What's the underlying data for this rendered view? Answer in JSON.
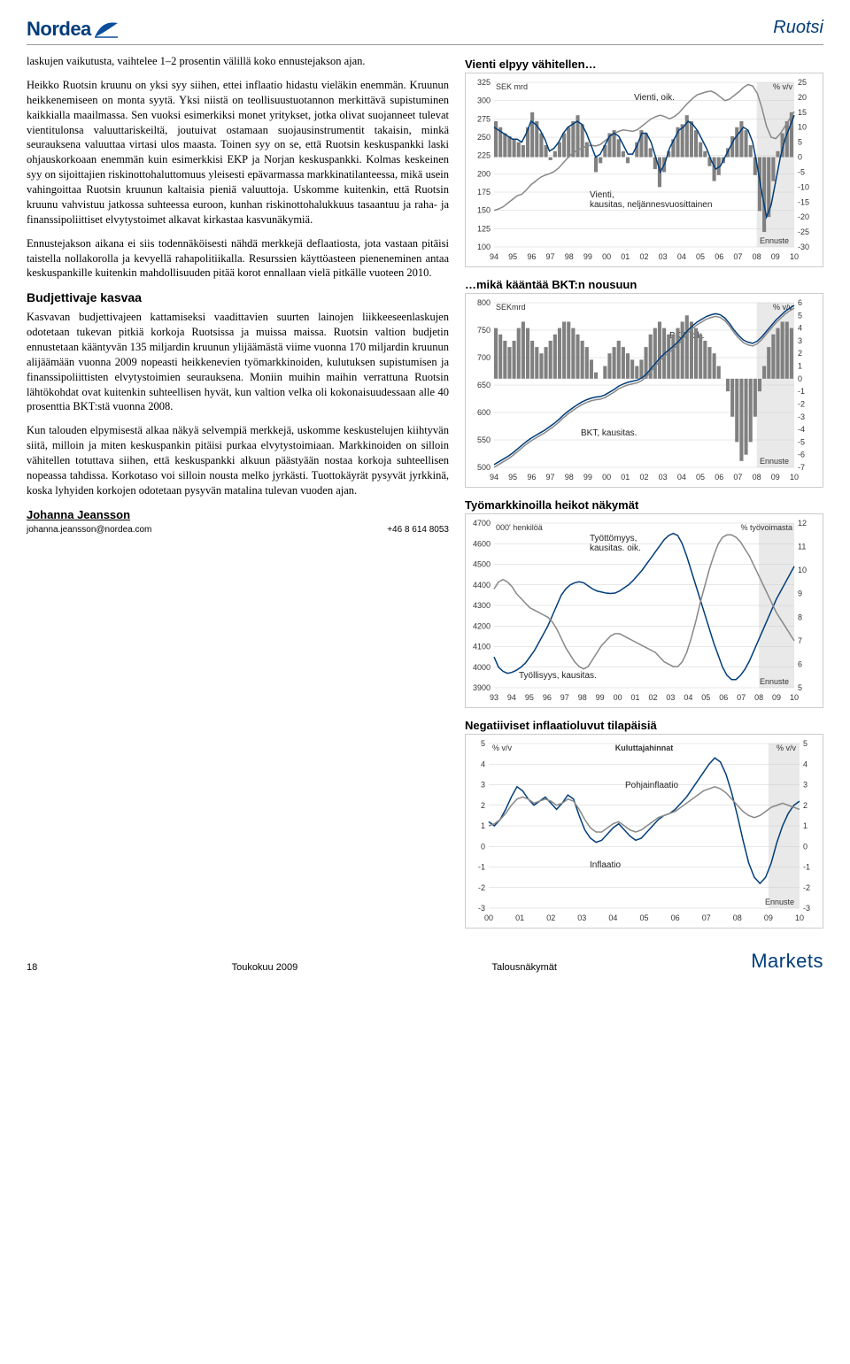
{
  "header": {
    "logo_text": "Nordea",
    "country": "Ruotsi"
  },
  "left": {
    "p1": "laskujen vaikutusta, vaihtelee 1–2 prosentin välillä koko ennustejakson ajan.",
    "p2": "Heikko Ruotsin kruunu on yksi syy siihen, ettei inflaatio hidastu vieläkin enemmän. Kruunun heikkenemiseen on monta syytä. Yksi niistä on teollisuustuotannon merkittävä supistuminen kaikkialla maailmassa. Sen vuoksi esimerkiksi monet yritykset, jotka olivat suojanneet tulevat vientitulonsa valuuttariskeiltä, joutuivat ostamaan suojausinstrumentit takaisin, minkä seurauksena valuuttaa virtasi ulos maasta. Toinen syy on se, että Ruotsin keskuspankki laski ohjauskorkoaan enemmän kuin esimerkkisi EKP ja Norjan keskuspankki. Kolmas keskeinen syy on sijoittajien riskinottohaluttomuus yleisesti epävarmassa markkinatilanteessa, mikä usein vahingoittaa Ruotsin kruunun kaltaisia pieniä valuuttoja. Uskomme kuitenkin, että Ruotsin kruunu vahvistuu jatkossa suhteessa euroon, kunhan riskinottohalukkuus tasaantuu ja raha- ja finanssipoliittiset elvytystoimet alkavat kirkastaa kasvunäkymiä.",
    "p3": "Ennustejakson aikana ei siis todennäköisesti nähdä merkkejä deflaatiosta, jota vastaan pitäisi taistella nollakorolla ja kevyellä rahapolitiikalla. Resurssien käyttöasteen pieneneminen antaa keskuspankille kuitenkin mahdollisuuden pitää korot ennallaan vielä pitkälle vuoteen 2010.",
    "subhead": "Budjettivaje kasvaa",
    "p4": "Kasvavan budjettivajeen kattamiseksi vaadittavien suurten lainojen liikkeeseenlaskujen odotetaan tukevan pitkiä korkoja Ruotsissa ja muissa maissa. Ruotsin valtion budjetin ennustetaan kääntyvän 135 miljardin kruunun ylijäämästä viime vuonna 170 miljardin kruunun alijäämään vuonna 2009 nopeasti heikkenevien työmarkkinoiden, kulutuksen supistumisen ja finanssipoliittisten elvytystoimien seurauksena. Moniin muihin maihin verrattuna Ruotsin lähtökohdat ovat kuitenkin suhteellisen hyvät, kun valtion velka oli kokonaisuudessaan alle 40 prosenttia BKT:stä vuonna 2008.",
    "p5": "Kun talouden elpymisestä alkaa näkyä selvempiä merkkejä, uskomme keskustelujen kiihtyvän siitä, milloin ja miten keskuspankin pitäisi purkaa elvytystoimiaan. Markkinoiden on silloin vähitellen totuttava siihen, että keskuspankki alkuun päästyään nostaa korkoja suhteellisen nopeassa tahdissa. Korkotaso voi silloin nousta melko jyrkästi. Tuottokäyrät pysyvät jyrkkinä, koska lyhyiden korkojen odotetaan pysyvän matalina tulevan vuoden ajan.",
    "author": "Johanna Jeansson",
    "email": "johanna.jeansson@nordea.com",
    "phone": "+46 8 614 8053"
  },
  "charts": {
    "years_long": [
      "94",
      "95",
      "96",
      "97",
      "98",
      "99",
      "00",
      "01",
      "02",
      "03",
      "04",
      "05",
      "06",
      "07",
      "08",
      "09",
      "10"
    ],
    "years_labor": [
      "93",
      "94",
      "95",
      "96",
      "97",
      "98",
      "99",
      "00",
      "01",
      "02",
      "03",
      "04",
      "05",
      "06",
      "07",
      "08",
      "09",
      "10"
    ],
    "years_cpi": [
      "00",
      "01",
      "02",
      "03",
      "04",
      "05",
      "06",
      "07",
      "08",
      "09",
      "10"
    ],
    "forecast_label": "Ennuste",
    "c1": {
      "title": "Vienti elpyy vähitellen…",
      "left_unit": "SEK mrd",
      "right_unit": "% v/v",
      "left_min": 100,
      "left_max": 325,
      "left_step": 25,
      "right_min": -30,
      "right_max": 25,
      "right_step": 5,
      "label_line_blue": "Vienti, oik.",
      "label_line_gray": "Vienti, kausitas, neljännesvuosittainen",
      "colors": {
        "blue": "#003d7a",
        "gray": "#7a7a7a",
        "bars": "#808080"
      }
    },
    "c2": {
      "title": "…mikä kääntää BKT:n nousuun",
      "left_unit": "SEKmrd",
      "right_unit": "% v/v",
      "left_min": 500,
      "left_max": 800,
      "left_step": 50,
      "right_min": -7,
      "right_max": 6,
      "right_step": 1,
      "label_blue": "BKT, oik.",
      "label_gray": "BKT, kausitas."
    },
    "c3": {
      "title": "Työmarkkinoilla heikot näkymät",
      "left_unit": "000' henkilöä",
      "right_unit": "% työvoimasta",
      "left_min": 3900,
      "left_max": 4700,
      "left_step": 100,
      "right_min": 5,
      "right_max": 12,
      "right_step": 1,
      "label_gray": "Työttömyys, kausitas. oik.",
      "label_blue": "Työllisyys, kausitas."
    },
    "c4": {
      "title": "Negatiiviset inflaatioluvut tilapäisiä",
      "unit": "% v/v",
      "center": "Kuluttajahinnat",
      "min": -3,
      "max": 5,
      "step": 1,
      "label_gray": "Pohjainflaatio",
      "label_blue": "Inflaatio"
    }
  },
  "footer": {
    "page": "18",
    "date": "Toukokuu 2009",
    "doc": "Talousnäkymät",
    "brand": "Markets"
  }
}
